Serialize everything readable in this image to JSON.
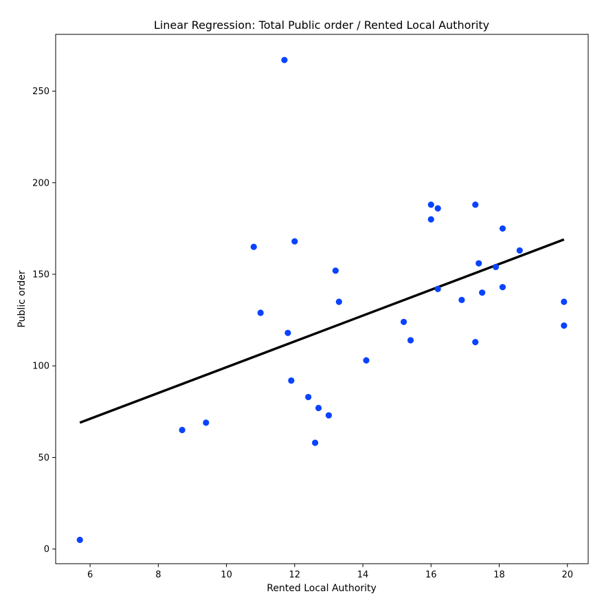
{
  "chart_data": {
    "type": "scatter",
    "title": "Linear Regression: Total Public order /  Rented Local Authority",
    "xlabel": "Rented Local Authority",
    "ylabel": "Public order",
    "xlim": [
      4.99,
      20.61
    ],
    "ylim": [
      -8,
      281
    ],
    "xticks": [
      6,
      8,
      10,
      12,
      14,
      16,
      18,
      20
    ],
    "yticks": [
      0,
      50,
      100,
      150,
      200,
      250
    ],
    "grid": false,
    "colors": {
      "points": "#0a43ff",
      "line": "#000000"
    },
    "series": [
      {
        "type": "scatter",
        "points": [
          {
            "x": 5.7,
            "y": 5
          },
          {
            "x": 8.7,
            "y": 65
          },
          {
            "x": 9.4,
            "y": 69
          },
          {
            "x": 10.8,
            "y": 165
          },
          {
            "x": 11.0,
            "y": 129
          },
          {
            "x": 11.7,
            "y": 267
          },
          {
            "x": 11.8,
            "y": 118
          },
          {
            "x": 11.9,
            "y": 92
          },
          {
            "x": 12.0,
            "y": 168
          },
          {
            "x": 12.4,
            "y": 83
          },
          {
            "x": 12.6,
            "y": 58
          },
          {
            "x": 12.7,
            "y": 77
          },
          {
            "x": 13.0,
            "y": 73
          },
          {
            "x": 13.2,
            "y": 152
          },
          {
            "x": 13.3,
            "y": 135
          },
          {
            "x": 14.1,
            "y": 103
          },
          {
            "x": 15.2,
            "y": 124
          },
          {
            "x": 15.4,
            "y": 114
          },
          {
            "x": 16.0,
            "y": 188
          },
          {
            "x": 16.0,
            "y": 180
          },
          {
            "x": 16.2,
            "y": 186
          },
          {
            "x": 16.2,
            "y": 142
          },
          {
            "x": 16.9,
            "y": 136
          },
          {
            "x": 17.3,
            "y": 188
          },
          {
            "x": 17.3,
            "y": 113
          },
          {
            "x": 17.4,
            "y": 156
          },
          {
            "x": 17.5,
            "y": 140
          },
          {
            "x": 17.9,
            "y": 154
          },
          {
            "x": 18.1,
            "y": 175
          },
          {
            "x": 18.1,
            "y": 143
          },
          {
            "x": 18.6,
            "y": 163
          },
          {
            "x": 19.9,
            "y": 135
          },
          {
            "x": 19.9,
            "y": 122
          }
        ]
      },
      {
        "type": "line",
        "points": [
          {
            "x": 5.7,
            "y": 69
          },
          {
            "x": 19.9,
            "y": 169
          }
        ]
      }
    ]
  }
}
